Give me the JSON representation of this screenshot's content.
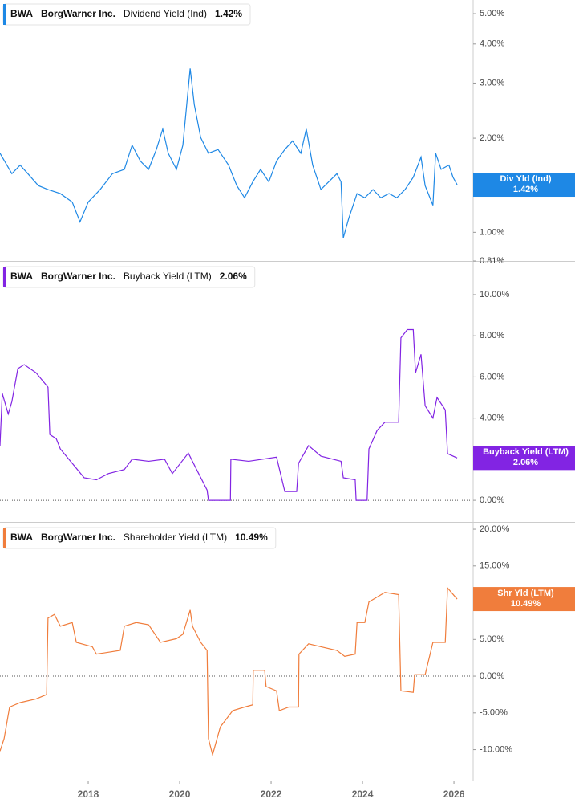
{
  "chart_data": [
    {
      "type": "line",
      "ticker": "BWA",
      "company": "BorgWarner Inc.",
      "log_scale": true,
      "x": [
        2016.07,
        2016.33,
        2016.51,
        2016.68,
        2016.91,
        2017.12,
        2017.39,
        2017.65,
        2017.82,
        2018.0,
        2018.26,
        2018.53,
        2018.79,
        2018.96,
        2019.14,
        2019.32,
        2019.49,
        2019.63,
        2019.75,
        2019.93,
        2020.07,
        2020.23,
        2020.32,
        2020.46,
        2020.63,
        2020.84,
        2021.07,
        2021.25,
        2021.42,
        2021.6,
        2021.77,
        2021.95,
        2022.12,
        2022.3,
        2022.47,
        2022.65,
        2022.77,
        2022.91,
        2023.09,
        2023.26,
        2023.44,
        2023.53,
        2023.58,
        2023.7,
        2023.88,
        2024.05,
        2024.23,
        2024.4,
        2024.58,
        2024.75,
        2024.93,
        2025.11,
        2025.28,
        2025.37,
        2025.54,
        2025.6,
        2025.72,
        2025.89,
        2025.98,
        2026.07
      ],
      "series": [
        {
          "name": "Dividend Yield (Ind)",
          "flag_label": "Div Yld (Ind)",
          "color": "#1e88e5",
          "last_value_label": "1.42%",
          "values": [
            1.79,
            1.54,
            1.64,
            1.54,
            1.41,
            1.37,
            1.33,
            1.25,
            1.08,
            1.25,
            1.37,
            1.54,
            1.59,
            1.9,
            1.69,
            1.59,
            1.84,
            2.14,
            1.79,
            1.59,
            1.9,
            3.34,
            2.56,
            2.01,
            1.79,
            1.84,
            1.64,
            1.41,
            1.29,
            1.45,
            1.59,
            1.45,
            1.69,
            1.84,
            1.96,
            1.79,
            2.14,
            1.64,
            1.37,
            1.45,
            1.54,
            1.45,
            0.96,
            1.11,
            1.33,
            1.29,
            1.37,
            1.29,
            1.33,
            1.29,
            1.37,
            1.5,
            1.74,
            1.41,
            1.22,
            1.79,
            1.59,
            1.64,
            1.5,
            1.42
          ]
        }
      ],
      "xlim": [
        2016.07,
        2026.42
      ],
      "ylim": [
        0.81,
        5.53
      ],
      "yticks": [
        {
          "value": 0.81,
          "label": "0.81%"
        },
        {
          "value": 1,
          "label": "1.00%"
        },
        {
          "value": 2,
          "label": "2.00%"
        },
        {
          "value": 3,
          "label": "3.00%"
        },
        {
          "value": 4,
          "label": "4.00%"
        },
        {
          "value": 5,
          "label": "5.00%"
        }
      ]
    },
    {
      "type": "line",
      "ticker": "BWA",
      "company": "BorgWarner Inc.",
      "zero_line": true,
      "x": [
        2016.07,
        2016.12,
        2016.25,
        2016.33,
        2016.46,
        2016.6,
        2016.86,
        2017.12,
        2017.16,
        2017.3,
        2017.39,
        2017.65,
        2017.91,
        2018.18,
        2018.44,
        2018.79,
        2018.96,
        2019.32,
        2019.67,
        2019.84,
        2020.19,
        2020.37,
        2020.6,
        2020.63,
        2021.11,
        2021.12,
        2021.51,
        2022.12,
        2022.3,
        2022.56,
        2022.6,
        2022.82,
        2023.09,
        2023.53,
        2023.58,
        2023.84,
        2023.86,
        2024.1,
        2024.14,
        2024.32,
        2024.49,
        2024.79,
        2024.84,
        2024.98,
        2025.11,
        2025.16,
        2025.28,
        2025.37,
        2025.54,
        2025.63,
        2025.81,
        2025.86,
        2026.07
      ],
      "series": [
        {
          "name": "Buyback Yield (LTM)",
          "flag_label": "Buyback Yield (LTM)",
          "color": "#8224e3",
          "last_value_label": "2.06%",
          "values": [
            2.66,
            5.2,
            4.2,
            4.8,
            6.4,
            6.6,
            6.2,
            5.5,
            3.2,
            3.0,
            2.5,
            1.8,
            1.1,
            1.0,
            1.3,
            1.5,
            2.0,
            1.9,
            2.0,
            1.3,
            2.3,
            1.5,
            0.5,
            0,
            0,
            2.0,
            1.9,
            2.1,
            0.43,
            0.43,
            1.8,
            2.66,
            2.15,
            1.9,
            1.1,
            1.0,
            0,
            0,
            2.5,
            3.4,
            3.8,
            3.8,
            7.9,
            8.3,
            8.3,
            6.2,
            7.1,
            4.6,
            4.0,
            5.0,
            4.4,
            2.27,
            2.06
          ]
        }
      ],
      "xlim": [
        2016.07,
        2026.42
      ],
      "ylim": [
        -1.05,
        11.56
      ],
      "yticks": [
        {
          "value": 0,
          "label": "0.00%"
        },
        {
          "value": 2,
          "label": "2.00%"
        },
        {
          "value": 4,
          "label": "4.00%"
        },
        {
          "value": 6,
          "label": "6.00%"
        },
        {
          "value": 8,
          "label": "8.00%"
        },
        {
          "value": 10,
          "label": "10.00%"
        }
      ]
    },
    {
      "type": "line",
      "ticker": "BWA",
      "company": "BorgWarner Inc.",
      "zero_line": true,
      "x": [
        2016.07,
        2016.16,
        2016.28,
        2016.51,
        2016.86,
        2017.09,
        2017.12,
        2017.26,
        2017.39,
        2017.65,
        2017.74,
        2018.09,
        2018.18,
        2018.7,
        2018.79,
        2019.05,
        2019.32,
        2019.58,
        2019.93,
        2020.07,
        2020.23,
        2020.28,
        2020.46,
        2020.6,
        2020.63,
        2020.72,
        2020.89,
        2021.16,
        2021.42,
        2021.6,
        2021.61,
        2021.86,
        2021.89,
        2022.12,
        2022.18,
        2022.39,
        2022.6,
        2022.61,
        2022.82,
        2023.09,
        2023.44,
        2023.61,
        2023.84,
        2023.88,
        2024.05,
        2024.14,
        2024.49,
        2024.79,
        2024.84,
        2025.11,
        2025.14,
        2025.37,
        2025.54,
        2025.81,
        2025.86,
        2026.07
      ],
      "series": [
        {
          "name": "Shareholder Yield (LTM)",
          "flag_label": "Shr Yld (LTM)",
          "color": "#f07d3c",
          "last_value_label": "10.49%",
          "values": [
            -10.2,
            -8.5,
            -4.2,
            -3.6,
            -3.1,
            -2.5,
            7.9,
            8.4,
            6.8,
            7.3,
            4.6,
            4.0,
            3.0,
            3.5,
            6.8,
            7.3,
            7.0,
            4.6,
            5.1,
            5.7,
            9.0,
            6.8,
            4.6,
            3.5,
            -8.5,
            -10.7,
            -6.9,
            -4.7,
            -4.2,
            -3.9,
            0.8,
            0.8,
            -1.4,
            -2.0,
            -4.7,
            -4.2,
            -4.2,
            3.0,
            4.4,
            4.0,
            3.5,
            2.7,
            3.0,
            7.3,
            7.3,
            10.1,
            11.4,
            11.1,
            -2.0,
            -2.2,
            0.2,
            0.2,
            4.6,
            4.6,
            12.0,
            10.49
          ]
        }
      ],
      "xlim": [
        2016.07,
        2026.42
      ],
      "ylim": [
        -14.2,
        20.77
      ],
      "yticks": [
        {
          "value": -10,
          "label": "-10.00%"
        },
        {
          "value": -5,
          "label": "-5.00%"
        },
        {
          "value": 0,
          "label": "0.00%"
        },
        {
          "value": 5,
          "label": "5.00%"
        },
        {
          "value": 10,
          "label": "10.00%"
        },
        {
          "value": 15,
          "label": "15.00%"
        },
        {
          "value": 20,
          "label": "20.00%"
        }
      ],
      "xticks": [
        2018,
        2020,
        2022,
        2024,
        2026
      ]
    }
  ]
}
